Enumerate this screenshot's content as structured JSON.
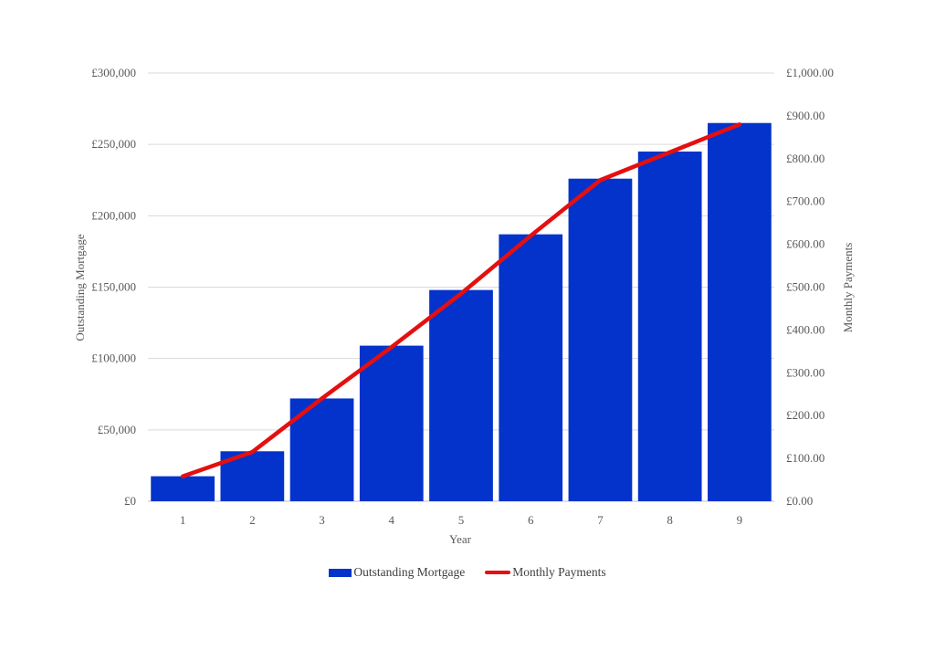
{
  "colors": {
    "bars": "#0433CB",
    "line": "#E50F0F",
    "grid": "#D9D9D9"
  },
  "chart_data": {
    "type": "bar",
    "combo": "bar+line (secondary axis)",
    "categories": [
      "1",
      "2",
      "3",
      "4",
      "5",
      "6",
      "7",
      "8",
      "9"
    ],
    "xlabel": "Year",
    "ylabel": "Outstanding Mortgage",
    "ylabel_right": "Monthly Payments",
    "ylim": [
      0,
      300000
    ],
    "ylim_right": [
      0,
      1000
    ],
    "yticks": [
      "£0",
      "£50,000",
      "£100,000",
      "£150,000",
      "£200,000",
      "£250,000",
      "£300,000"
    ],
    "yticks_right": [
      "£0.00",
      "£100.00",
      "£200.00",
      "£300.00",
      "£400.00",
      "£500.00",
      "£600.00",
      "£700.00",
      "£800.00",
      "£900.00",
      "£1,000.00"
    ],
    "grid": true,
    "legend_position": "bottom",
    "series": [
      {
        "name": "Outstanding Mortgage",
        "type": "bar",
        "axis": "left",
        "values": [
          17500,
          35000,
          72000,
          109000,
          148000,
          187000,
          226000,
          245000,
          265000
        ]
      },
      {
        "name": "Monthly Payments",
        "type": "line",
        "axis": "right",
        "values": [
          58,
          115,
          240,
          360,
          485,
          620,
          750,
          815,
          880
        ]
      }
    ]
  }
}
